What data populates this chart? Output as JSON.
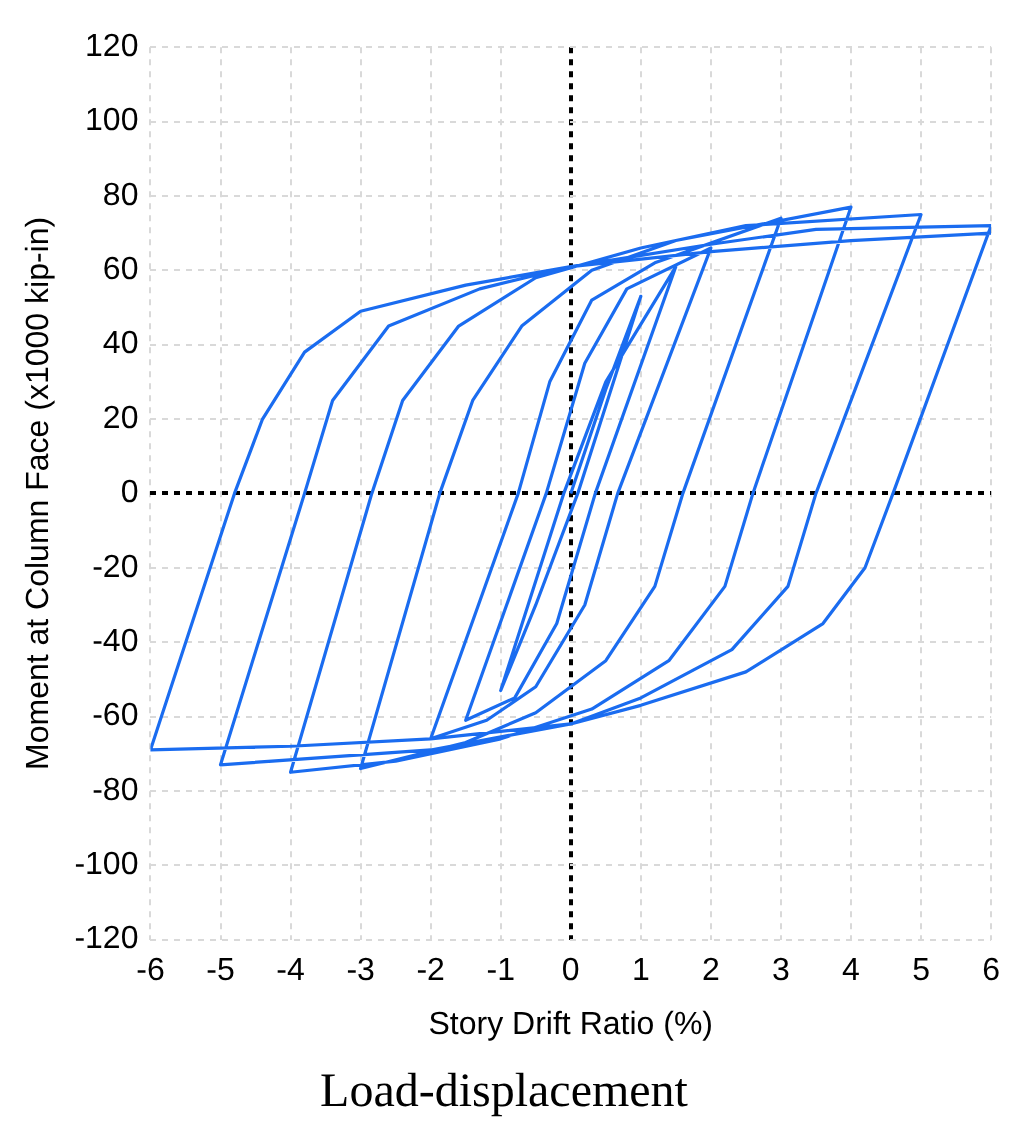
{
  "chart_data": {
    "type": "line",
    "title": "Load-displacement",
    "xlabel": "Story Drift Ratio (%)",
    "ylabel": "Moment at Column Face (x1000 kip-in)",
    "x": [
      0,
      0.5,
      1,
      0.1,
      -0.5,
      -1,
      -0.1,
      0.5,
      1.5,
      0.35,
      -0.2,
      -0.8,
      -1.5,
      -0.35,
      0.2,
      0.8,
      2,
      0.67,
      0.2,
      -0.5,
      -1.2,
      -2,
      -0.75,
      -0.3,
      0.3,
      1.2,
      3,
      1.6,
      1.2,
      0.5,
      -0.5,
      -1.5,
      -3,
      -1.87,
      -1.4,
      -0.7,
      0.3,
      1.5,
      4,
      2.6,
      2.2,
      1.4,
      0.3,
      -1,
      -2.5,
      -4,
      -2.84,
      -2.4,
      -1.6,
      -0.5,
      1,
      2.5,
      5,
      3.5,
      3.1,
      2.3,
      1,
      0,
      -2,
      -5,
      -3.8,
      -3.4,
      -2.6,
      -1.3,
      0,
      2,
      3.5,
      6,
      4.6,
      4.2,
      3.6,
      2.5,
      1,
      0,
      -2,
      -4,
      -6,
      -4.8,
      -4.4,
      -3.8,
      -3,
      -1.5,
      0,
      2,
      4,
      6
    ],
    "values": [
      0,
      28,
      53,
      0,
      -30,
      -53,
      0,
      30,
      61,
      0,
      -35,
      -55,
      -61,
      0,
      35,
      55,
      66,
      0,
      -30,
      -52,
      -61,
      -66,
      0,
      30,
      52,
      62,
      74,
      0,
      -25,
      -45,
      -59,
      -67,
      -74,
      0,
      25,
      45,
      60,
      68,
      77,
      0,
      -25,
      -45,
      -58,
      -66,
      -72,
      -75,
      0,
      25,
      45,
      58,
      66,
      72,
      75,
      0,
      -25,
      -42,
      -55,
      -62,
      -69,
      -73,
      0,
      25,
      45,
      55,
      61,
      67,
      71,
      72,
      0,
      -20,
      -35,
      -48,
      -57,
      -62,
      -66,
      -68,
      -69,
      0,
      20,
      38,
      49,
      56,
      61,
      65,
      68,
      70
    ],
    "color": "#1a6cf0",
    "marker": "none",
    "line_style": "solid",
    "xlim": [
      -6,
      6
    ],
    "xticks": [
      -6,
      -5,
      -4,
      -3,
      -2,
      -1,
      0,
      1,
      2,
      3,
      4,
      5,
      6
    ],
    "ylim": [
      -120,
      120
    ],
    "yticks": [
      -120,
      -100,
      -80,
      -60,
      -40,
      -20,
      0,
      20,
      40,
      60,
      80,
      100,
      120
    ],
    "grid": true,
    "legend": false
  }
}
